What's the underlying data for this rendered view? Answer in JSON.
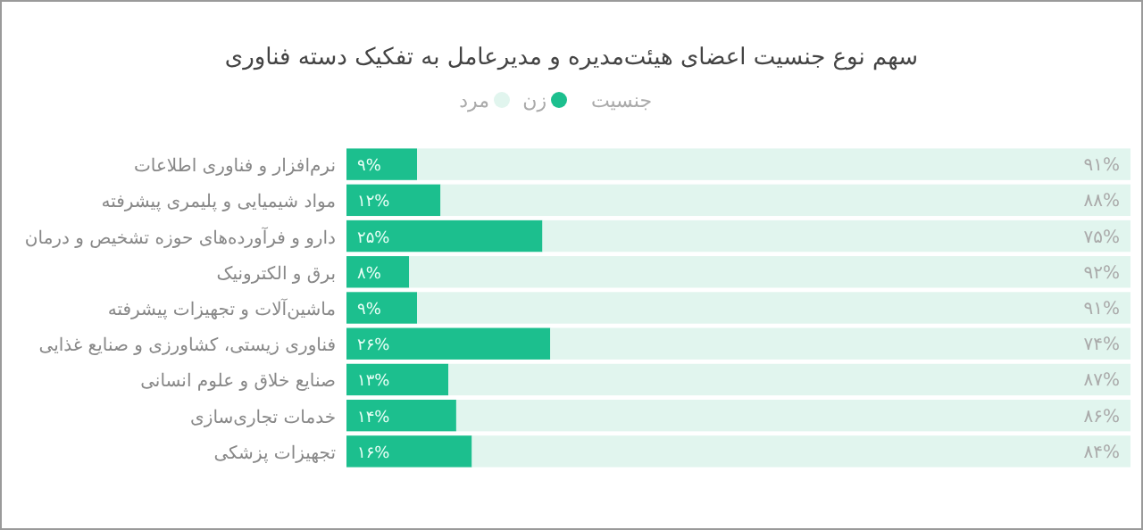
{
  "chart_data": {
    "type": "bar",
    "orientation": "horizontal",
    "stacked": true,
    "title": "سهم نوع جنسیت اعضای هیئت‌مدیره و مدیرعامل به تفکیک دسته فناوری",
    "legend_title": "جنسیت",
    "legend": "top",
    "categories": [
      "نرم‌افزار و فناوری اطلاعات",
      "مواد شیمیایی و پلیمری پیشرفته",
      "دارو و فرآورده‌های حوزه تشخیص و درمان",
      "برق و الکترونیک",
      "ماشین‌آلات و تجهیزات پیشرفته",
      "فناوری زیستی، کشاورزی و صنایع غذایی",
      "صنایع خلاق و علوم انسانی",
      "خدمات تجاری‌سازی",
      "تجهیزات پزشکی"
    ],
    "xlim": [
      0,
      100
    ],
    "series": [
      {
        "name": "زن",
        "color": "#1cbf8e",
        "values": [
          9,
          12,
          25,
          8,
          9,
          26,
          13,
          14,
          16
        ],
        "value_labels": [
          "۹%",
          "۱۲%",
          "۲۵%",
          "۸%",
          "۹%",
          "۲۶%",
          "۱۳%",
          "۱۴%",
          "۱۶%"
        ]
      },
      {
        "name": "مرد",
        "color": "#e1f5ee",
        "values": [
          91,
          88,
          75,
          92,
          91,
          74,
          87,
          86,
          84
        ],
        "value_labels": [
          "۹۱%",
          "۸۸%",
          "۷۵%",
          "۹۲%",
          "۹۱%",
          "۷۴%",
          "۸۷%",
          "۸۶%",
          "۸۴%"
        ]
      }
    ]
  }
}
